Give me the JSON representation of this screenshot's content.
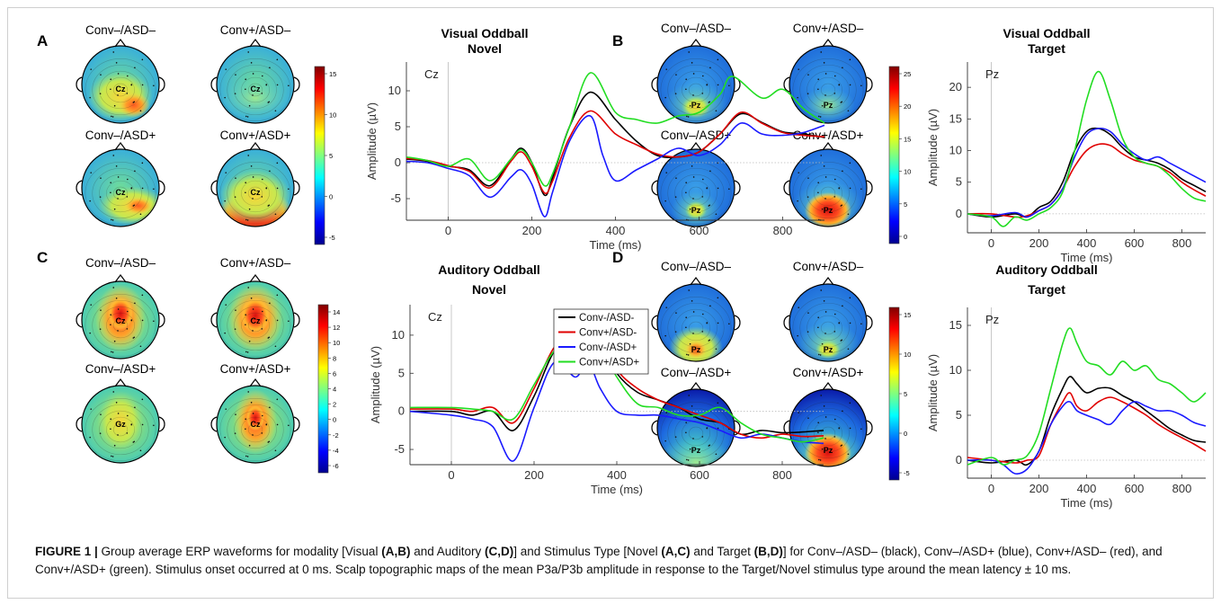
{
  "colors": {
    "black": "#000000",
    "red": "#e00000",
    "blue": "#1a1aff",
    "green": "#22dd22"
  },
  "chart_data": [
    {
      "panel": "A",
      "type": "line",
      "title": "Visual Oddball",
      "subtitle": "Novel",
      "electrode": "Cz",
      "xlabel": "Time (ms)",
      "ylabel": "Amplitude (µV)",
      "xlim": [
        -100,
        900
      ],
      "ylim": [
        -8,
        14
      ],
      "xticks": [
        0,
        200,
        400,
        600,
        800
      ],
      "yticks": [
        -5,
        0,
        5,
        10
      ],
      "topo_labels": [
        "Conv–/ASD–",
        "Conv+/ASD–",
        "Conv–/ASD+",
        "Conv+/ASD+"
      ],
      "colorbar_ticks": [
        "15",
        "10",
        "5",
        "0",
        "-5"
      ],
      "series": [
        {
          "color": "black",
          "x": [
            -100,
            -50,
            0,
            50,
            100,
            150,
            175,
            200,
            230,
            250,
            290,
            340,
            400,
            450,
            500,
            550,
            600,
            650,
            700,
            750,
            800,
            850,
            900
          ],
          "y": [
            0.5,
            0.2,
            -0.5,
            -1,
            -3.2,
            0.5,
            2,
            0,
            -4.5,
            -2,
            5,
            9.8,
            6,
            3,
            1,
            0.8,
            1.5,
            4,
            6.8,
            5.6,
            4.3,
            4,
            3.5
          ]
        },
        {
          "color": "red",
          "x": [
            -100,
            -50,
            0,
            50,
            100,
            150,
            175,
            200,
            230,
            250,
            290,
            340,
            400,
            450,
            500,
            550,
            600,
            650,
            700,
            750,
            800,
            850,
            900
          ],
          "y": [
            0.6,
            0.3,
            -0.4,
            -1.2,
            -3.5,
            0.2,
            1.5,
            -0.5,
            -4.2,
            -2.5,
            3.5,
            7.2,
            4,
            2.5,
            1.2,
            0.8,
            1.5,
            4,
            7,
            5.5,
            4.2,
            3.8,
            3.6
          ]
        },
        {
          "color": "blue",
          "x": [
            -100,
            -50,
            0,
            50,
            100,
            150,
            175,
            200,
            230,
            250,
            290,
            340,
            370,
            400,
            450,
            500,
            550,
            600,
            650,
            700,
            750,
            800,
            850,
            900
          ],
          "y": [
            0.2,
            0,
            -0.8,
            -1.8,
            -4.8,
            -2,
            -1,
            -3,
            -7.5,
            -4,
            3,
            6.5,
            1,
            -2.5,
            -1,
            0.5,
            2,
            1,
            2.5,
            5.5,
            4,
            3.8,
            4.2,
            5.2
          ]
        },
        {
          "color": "green",
          "x": [
            -100,
            -50,
            0,
            50,
            100,
            150,
            175,
            200,
            230,
            250,
            290,
            340,
            400,
            450,
            500,
            550,
            600,
            650,
            680,
            750,
            800,
            850,
            900
          ],
          "y": [
            0.8,
            0.3,
            -0.5,
            0.5,
            -2.5,
            0.5,
            1.8,
            0,
            -3.2,
            -1.5,
            5,
            12.5,
            7,
            6,
            5.5,
            6.5,
            7,
            9.5,
            12,
            9,
            10.2,
            7.5,
            5.5
          ]
        }
      ]
    },
    {
      "panel": "B",
      "type": "line",
      "title": "Visual Oddball",
      "subtitle": "Target",
      "electrode": "Pz",
      "xlabel": "Time (ms)",
      "ylabel": "Amplitude (µV)",
      "xlim": [
        -100,
        900
      ],
      "ylim": [
        -3,
        24
      ],
      "xticks": [
        0,
        200,
        400,
        600,
        800
      ],
      "yticks": [
        0,
        5,
        10,
        15,
        20
      ],
      "topo_labels": [
        "Conv–/ASD–",
        "Conv+/ASD–",
        "Conv–/ASD+",
        "Conv+/ASD+"
      ],
      "colorbar_ticks": [
        "25",
        "20",
        "15",
        "10",
        "5",
        "0"
      ],
      "series": [
        {
          "color": "black",
          "x": [
            -100,
            0,
            100,
            150,
            200,
            250,
            300,
            350,
            400,
            450,
            500,
            550,
            600,
            650,
            700,
            750,
            800,
            850,
            900
          ],
          "y": [
            0,
            -0.5,
            0,
            -0.5,
            1,
            2,
            5,
            10,
            13,
            13.5,
            12.5,
            10.5,
            9,
            8.5,
            8,
            7,
            5.5,
            4.5,
            3.5
          ]
        },
        {
          "color": "red",
          "x": [
            -100,
            0,
            100,
            150,
            200,
            250,
            300,
            350,
            400,
            450,
            500,
            550,
            600,
            650,
            700,
            750,
            800,
            850,
            900
          ],
          "y": [
            0,
            0,
            -0.5,
            -0.3,
            0.5,
            1.5,
            4,
            7.5,
            10,
            11,
            10.8,
            9.5,
            8.5,
            8,
            7.5,
            6.5,
            5,
            3.8,
            2.8
          ]
        },
        {
          "color": "blue",
          "x": [
            -100,
            0,
            100,
            150,
            200,
            250,
            300,
            350,
            400,
            450,
            500,
            550,
            600,
            650,
            700,
            750,
            800,
            850,
            900
          ],
          "y": [
            0,
            -0.3,
            0.2,
            -0.5,
            0.5,
            1.5,
            4,
            9,
            12.5,
            13.5,
            13,
            11,
            9.5,
            8.5,
            9,
            8,
            7,
            6,
            5
          ]
        },
        {
          "color": "green",
          "x": [
            -100,
            0,
            50,
            100,
            150,
            200,
            250,
            300,
            350,
            400,
            450,
            500,
            550,
            600,
            650,
            700,
            750,
            800,
            850,
            900
          ],
          "y": [
            0,
            -0.5,
            -2,
            -0.5,
            -1,
            0,
            1,
            3.5,
            10,
            18,
            22.5,
            18,
            12,
            9,
            8,
            7.5,
            6,
            4,
            2.5,
            2
          ]
        }
      ]
    },
    {
      "panel": "C",
      "type": "line",
      "title": "Auditory Oddball",
      "subtitle": "Novel",
      "electrode": "Cz",
      "xlabel": "Time (ms)",
      "ylabel": "Amplitude (µV)",
      "xlim": [
        -100,
        900
      ],
      "ylim": [
        -7,
        14
      ],
      "xticks": [
        0,
        200,
        400,
        600,
        800
      ],
      "yticks": [
        -5,
        0,
        5,
        10
      ],
      "topo_labels": [
        "Conv–/ASD–",
        "Conv+/ASD–",
        "Conv–/ASD+",
        "Conv+/ASD+"
      ],
      "colorbar_ticks": [
        "14",
        "12",
        "10",
        "8",
        "6",
        "4",
        "2",
        "0",
        "-2",
        "-4",
        "-6"
      ],
      "legend": [
        "Conv-/ASD-",
        "Conv+/ASD-",
        "Conv-/ASD+",
        "Conv+/ASD+"
      ],
      "series": [
        {
          "color": "black",
          "x": [
            -100,
            0,
            50,
            100,
            150,
            200,
            250,
            300,
            330,
            360,
            400,
            450,
            500,
            550,
            600,
            650,
            700,
            750,
            800,
            850,
            900
          ],
          "y": [
            0,
            0,
            -0.5,
            0,
            -2.5,
            2,
            8,
            9.5,
            11,
            9,
            5,
            2.5,
            1.5,
            0.5,
            -1,
            -1.5,
            -3,
            -2.5,
            -2.8,
            -2.7,
            -2.5
          ]
        },
        {
          "color": "red",
          "x": [
            -100,
            0,
            50,
            100,
            150,
            200,
            250,
            300,
            330,
            360,
            400,
            450,
            500,
            550,
            600,
            650,
            700,
            750,
            800,
            850,
            900
          ],
          "y": [
            0.3,
            0.3,
            0,
            0.5,
            -1.5,
            3,
            8.5,
            10,
            11.5,
            10,
            5.5,
            3,
            1.5,
            0.5,
            -0.5,
            -1.5,
            -3,
            -3.5,
            -3,
            -3.3,
            -3.2
          ]
        },
        {
          "color": "blue",
          "x": [
            -100,
            0,
            50,
            100,
            150,
            200,
            250,
            300,
            330,
            360,
            400,
            450,
            500,
            550,
            600,
            650,
            700,
            750,
            800,
            850,
            900
          ],
          "y": [
            0,
            -0.5,
            -1,
            -2,
            -6.5,
            0.5,
            6.5,
            4.5,
            6.5,
            3,
            0,
            -0.5,
            -0.5,
            -1,
            -1.5,
            -2.5,
            -3.5,
            -3,
            -3.5,
            -4,
            -4.2
          ]
        },
        {
          "color": "green",
          "x": [
            -100,
            0,
            50,
            100,
            150,
            200,
            250,
            300,
            330,
            360,
            400,
            450,
            500,
            550,
            600,
            650,
            700,
            750,
            800,
            850,
            900
          ],
          "y": [
            0.5,
            0.5,
            0.3,
            0,
            -1,
            3.5,
            8,
            9,
            10,
            8.5,
            4.5,
            1,
            0.5,
            -0.5,
            -0.5,
            0.5,
            -1.5,
            -3,
            -3.5,
            -4,
            -3.5
          ]
        }
      ]
    },
    {
      "panel": "D",
      "type": "line",
      "title": "Auditory Oddball",
      "subtitle": "Target",
      "electrode": "Pz",
      "xlabel": "Time (ms)",
      "ylabel": "Amplitude (µV)",
      "xlim": [
        -100,
        900
      ],
      "ylim": [
        -2,
        17
      ],
      "xticks": [
        0,
        200,
        400,
        600,
        800
      ],
      "yticks": [
        0,
        5,
        10,
        15
      ],
      "topo_labels": [
        "Conv–/ASD–",
        "Conv+/ASD–",
        "Conv–/ASD+",
        "Conv+/ASD+"
      ],
      "colorbar_ticks": [
        "15",
        "10",
        "5",
        "0",
        "-5"
      ],
      "series": [
        {
          "color": "black",
          "x": [
            -100,
            0,
            100,
            150,
            200,
            250,
            300,
            330,
            360,
            400,
            450,
            500,
            550,
            600,
            650,
            700,
            750,
            800,
            850,
            900
          ],
          "y": [
            0,
            -0.3,
            0,
            -0.5,
            1,
            5,
            8,
            9.3,
            8.5,
            7.5,
            8,
            8,
            7.2,
            6.5,
            5.5,
            4.5,
            3.5,
            2.8,
            2.2,
            2
          ]
        },
        {
          "color": "red",
          "x": [
            -100,
            0,
            100,
            150,
            200,
            250,
            300,
            330,
            360,
            400,
            450,
            500,
            550,
            600,
            650,
            700,
            750,
            800,
            850,
            900
          ],
          "y": [
            0.3,
            0,
            -0.3,
            0,
            0.5,
            4,
            6.5,
            7.5,
            6,
            5.5,
            6.5,
            7,
            6.5,
            5.8,
            5,
            4,
            3.2,
            2.5,
            1.8,
            1
          ]
        },
        {
          "color": "blue",
          "x": [
            -100,
            0,
            50,
            100,
            150,
            200,
            250,
            300,
            330,
            360,
            400,
            450,
            500,
            550,
            600,
            650,
            700,
            750,
            800,
            850,
            900
          ],
          "y": [
            0,
            0,
            -0.5,
            -1.5,
            -1,
            1,
            4,
            6,
            6.5,
            5.5,
            5,
            4.5,
            4,
            5.5,
            6.5,
            6,
            5.5,
            5.5,
            5,
            4.2,
            3.8
          ]
        },
        {
          "color": "green",
          "x": [
            -100,
            0,
            50,
            100,
            150,
            200,
            250,
            300,
            330,
            360,
            400,
            450,
            500,
            550,
            600,
            650,
            700,
            750,
            800,
            850,
            900
          ],
          "y": [
            -0.5,
            0.3,
            -0.5,
            0,
            0.5,
            3,
            8,
            13,
            14.7,
            13,
            11,
            10.5,
            9.5,
            11,
            10,
            10.5,
            9,
            8.5,
            7.5,
            6.5,
            7.5
          ]
        }
      ]
    }
  ],
  "caption": {
    "label": "FIGURE 1 |",
    "segments": [
      {
        "t": " Group average ERP waveforms for modality [Visual ",
        "b": false
      },
      {
        "t": "(A,B)",
        "b": true
      },
      {
        "t": " and Auditory ",
        "b": false
      },
      {
        "t": "(C,D)",
        "b": true
      },
      {
        "t": "] and Stimulus Type [Novel ",
        "b": false
      },
      {
        "t": "(A,C)",
        "b": true
      },
      {
        "t": " and Target ",
        "b": false
      },
      {
        "t": "(B,D)",
        "b": true
      },
      {
        "t": "] for Conv–/ASD– (black), Conv–/ASD+ (blue), Conv+/ASD– (red), and Conv+/ASD+ (green). Stimulus onset occurred at 0 ms. Scalp topographic maps of the mean P3a/P3b amplitude in response to the Target/Novel stimulus type around the mean latency ± 10 ms.",
        "b": false
      }
    ]
  }
}
